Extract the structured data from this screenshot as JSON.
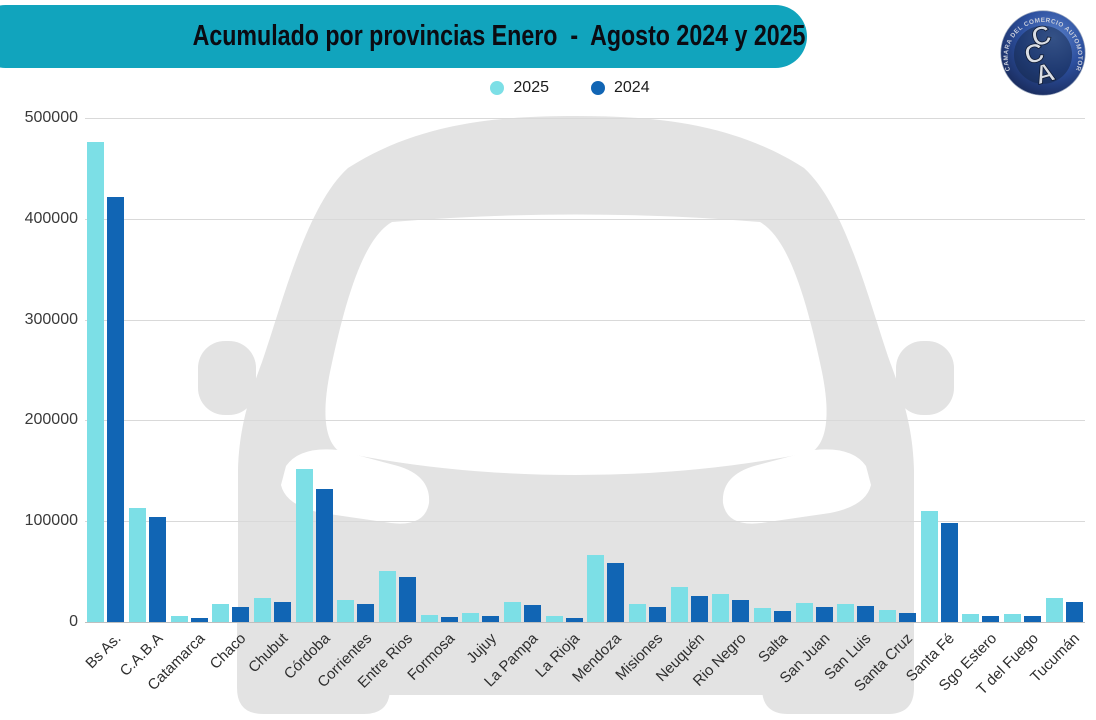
{
  "header": {
    "title": "Acumulado por provincias Enero  -  Agosto 2024 y 2025"
  },
  "logo": {
    "ring_text": "CAMARA DEL COMERCIO AUTOMOTOR",
    "letters": [
      "C",
      "C",
      "A"
    ]
  },
  "colors": {
    "banner": "#11a4bd",
    "series_2025": "#7cdfe6",
    "series_2024": "#1165b4",
    "car_watermark": "#e3e3e3",
    "gridline": "#d9d9d9",
    "axis_text": "#3a3a3a"
  },
  "chart_data": {
    "type": "bar",
    "title": "Acumulado por provincias Enero  -  Agosto 2024 y 2025",
    "xlabel": "",
    "ylabel": "",
    "ylim": [
      0,
      500000
    ],
    "yticks": [
      0,
      100000,
      200000,
      300000,
      400000,
      500000
    ],
    "grid": true,
    "legend_position": "top-center",
    "categories": [
      "Bs As.",
      "C.A.B.A",
      "Catamarca",
      "Chaco",
      "Chubut",
      "Córdoba",
      "Corrientes",
      "Entre Rios",
      "Formosa",
      "Jujuy",
      "La Pampa",
      "La Rioja",
      "Mendoza",
      "Misiones",
      "Neuquén",
      "Rio Negro",
      "Salta",
      "San Juan",
      "San Luis",
      "Santa Cruz",
      "Santa Fé",
      "Sgo Estero",
      "T del Fuego",
      "Tucumán"
    ],
    "series": [
      {
        "name": "2025",
        "color": "#7cdfe6",
        "values": [
          476000,
          113000,
          6000,
          18000,
          24000,
          152000,
          22000,
          51000,
          7000,
          8500,
          19500,
          6000,
          66000,
          18000,
          34500,
          28000,
          14000,
          18500,
          17500,
          12000,
          110000,
          8000,
          7500,
          24000
        ]
      },
      {
        "name": "2024",
        "color": "#1165b4",
        "values": [
          422000,
          104000,
          4000,
          14500,
          19500,
          132000,
          18000,
          45000,
          4500,
          6000,
          16500,
          4000,
          58500,
          15000,
          26000,
          22000,
          11000,
          14500,
          15500,
          9000,
          98000,
          6000,
          5500,
          19500
        ]
      }
    ]
  }
}
